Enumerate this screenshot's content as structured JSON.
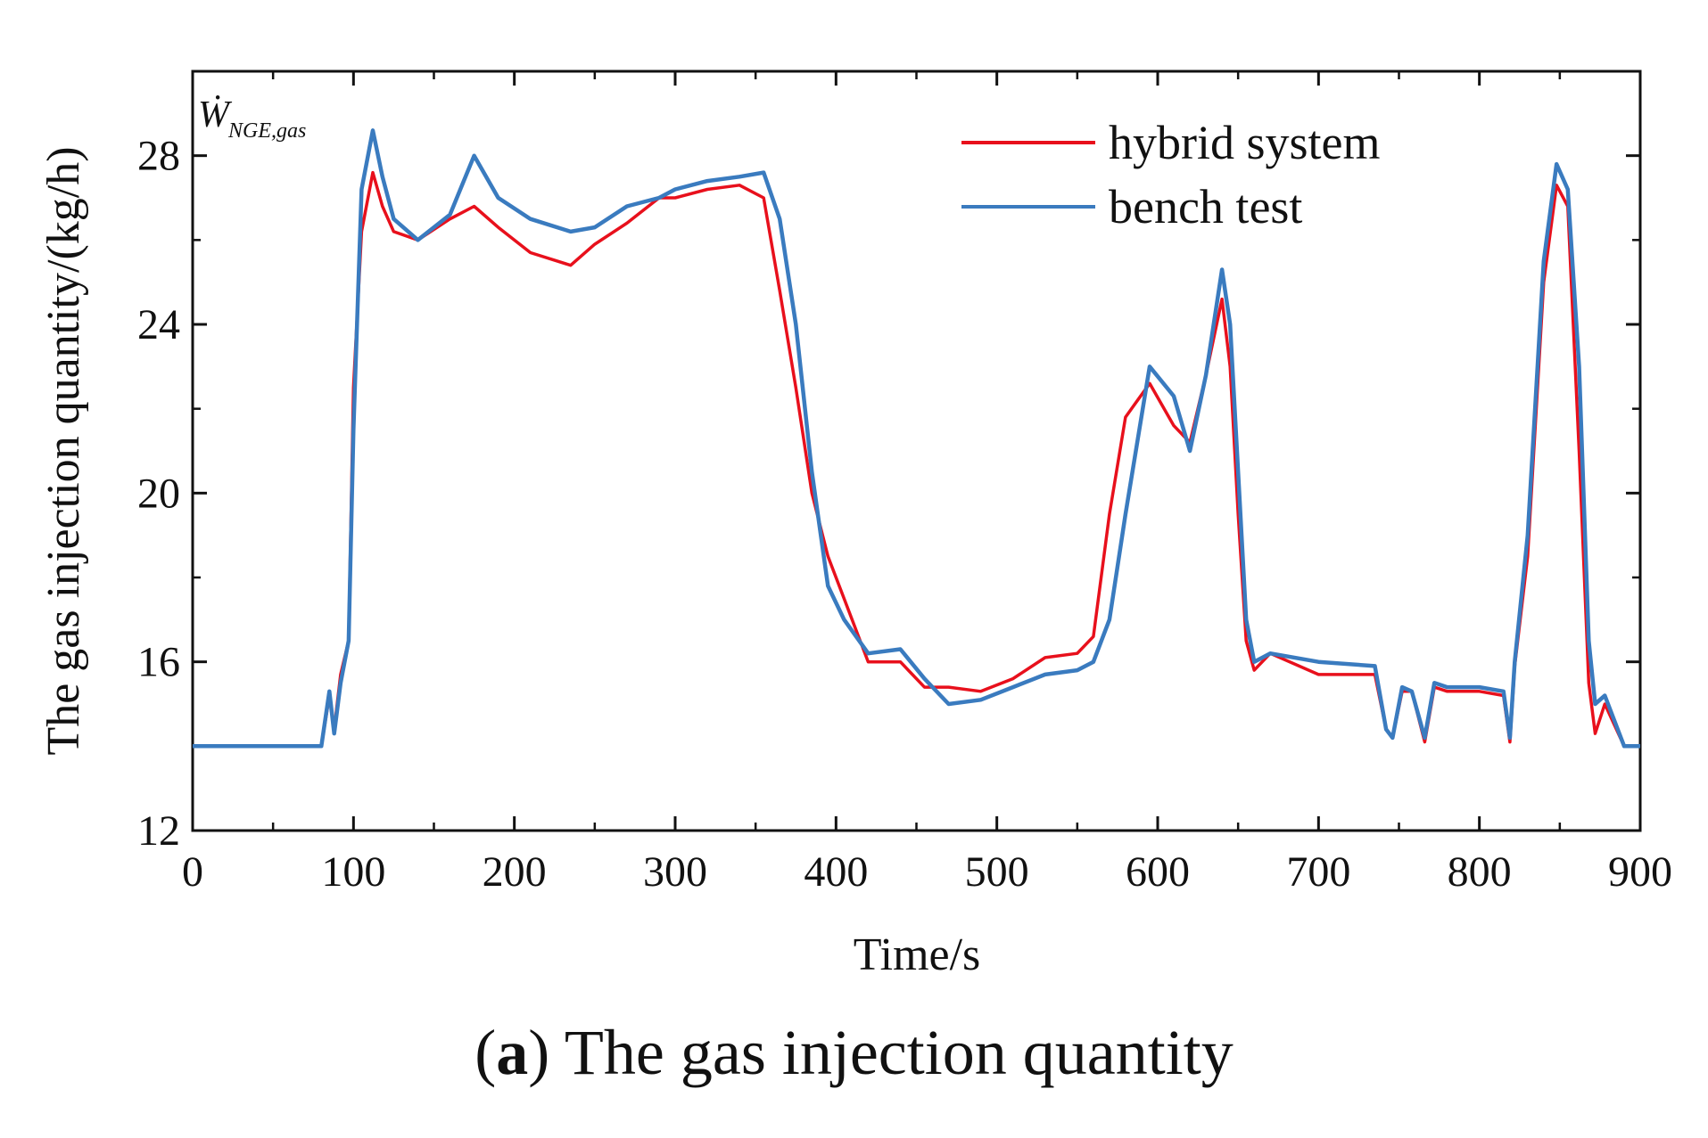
{
  "colors": {
    "hybrid": "#e8101c",
    "bench": "#3a7bbf",
    "axis": "#111111"
  },
  "chart_data": {
    "type": "line",
    "xlabel": "Time/s",
    "ylabel": "The gas injection quantity/(kg/h)",
    "annotation": {
      "main": "Ẇ",
      "sub": "NGE,gas"
    },
    "xlim": [
      0,
      900
    ],
    "ylim": [
      12,
      30
    ],
    "xticks": [
      "0",
      "100",
      "200",
      "300",
      "400",
      "500",
      "600",
      "700",
      "800",
      "900"
    ],
    "yticks": [
      "12",
      "16",
      "20",
      "24",
      "28"
    ],
    "legend_position": "top-right",
    "series": [
      {
        "name": "hybrid system",
        "color": "#e8101c",
        "x": [
          0,
          80,
          85,
          88,
          92,
          97,
          100,
          105,
          112,
          118,
          125,
          140,
          160,
          175,
          190,
          210,
          235,
          250,
          270,
          290,
          300,
          320,
          340,
          355,
          365,
          375,
          385,
          395,
          405,
          420,
          440,
          455,
          470,
          490,
          510,
          530,
          550,
          560,
          570,
          580,
          595,
          610,
          620,
          630,
          640,
          645,
          650,
          655,
          660,
          670,
          700,
          735,
          742,
          746,
          752,
          758,
          766,
          772,
          780,
          800,
          815,
          819,
          822,
          830,
          840,
          848,
          855,
          862,
          868,
          872,
          878,
          890,
          900
        ],
        "y": [
          14.0,
          14.0,
          15.2,
          14.4,
          15.7,
          16.5,
          22.5,
          26.2,
          27.6,
          26.8,
          26.2,
          26.0,
          26.5,
          26.8,
          26.3,
          25.7,
          25.4,
          25.9,
          26.4,
          27.0,
          27.0,
          27.2,
          27.3,
          27.0,
          24.8,
          22.5,
          20.0,
          18.5,
          17.5,
          16.0,
          16.0,
          15.4,
          15.4,
          15.3,
          15.6,
          16.1,
          16.2,
          16.6,
          19.5,
          21.8,
          22.6,
          21.6,
          21.2,
          22.8,
          24.6,
          23.0,
          19.5,
          16.5,
          15.8,
          16.2,
          15.7,
          15.7,
          14.4,
          14.2,
          15.3,
          15.3,
          14.1,
          15.4,
          15.3,
          15.3,
          15.2,
          14.1,
          15.9,
          18.5,
          25.0,
          27.3,
          26.8,
          21.0,
          15.5,
          14.3,
          15.0,
          14.0,
          14.0
        ]
      },
      {
        "name": "bench test",
        "color": "#3a7bbf",
        "x": [
          0,
          80,
          85,
          88,
          92,
          97,
          100,
          105,
          112,
          118,
          125,
          140,
          160,
          175,
          190,
          210,
          235,
          250,
          270,
          290,
          300,
          320,
          340,
          355,
          365,
          375,
          385,
          395,
          405,
          420,
          440,
          455,
          470,
          490,
          510,
          530,
          550,
          560,
          570,
          580,
          595,
          610,
          620,
          630,
          640,
          645,
          650,
          655,
          660,
          670,
          700,
          735,
          742,
          746,
          752,
          758,
          766,
          772,
          780,
          800,
          815,
          819,
          822,
          830,
          840,
          848,
          855,
          862,
          868,
          872,
          878,
          890,
          900
        ],
        "y": [
          14.0,
          14.0,
          15.3,
          14.3,
          15.5,
          16.5,
          21.5,
          27.2,
          28.6,
          27.5,
          26.5,
          26.0,
          26.6,
          28.0,
          27.0,
          26.5,
          26.2,
          26.3,
          26.8,
          27.0,
          27.2,
          27.4,
          27.5,
          27.6,
          26.5,
          24.0,
          20.5,
          17.8,
          17.0,
          16.2,
          16.3,
          15.6,
          15.0,
          15.1,
          15.4,
          15.7,
          15.8,
          16.0,
          17.0,
          19.5,
          23.0,
          22.3,
          21.0,
          22.8,
          25.3,
          24.0,
          20.5,
          17.0,
          16.0,
          16.2,
          16.0,
          15.9,
          14.4,
          14.2,
          15.4,
          15.3,
          14.2,
          15.5,
          15.4,
          15.4,
          15.3,
          14.2,
          16.0,
          19.0,
          25.5,
          27.8,
          27.2,
          23.0,
          16.5,
          15.0,
          15.2,
          14.0,
          14.0
        ]
      }
    ]
  },
  "caption": {
    "label": "a",
    "text": " The gas injection quantity"
  }
}
